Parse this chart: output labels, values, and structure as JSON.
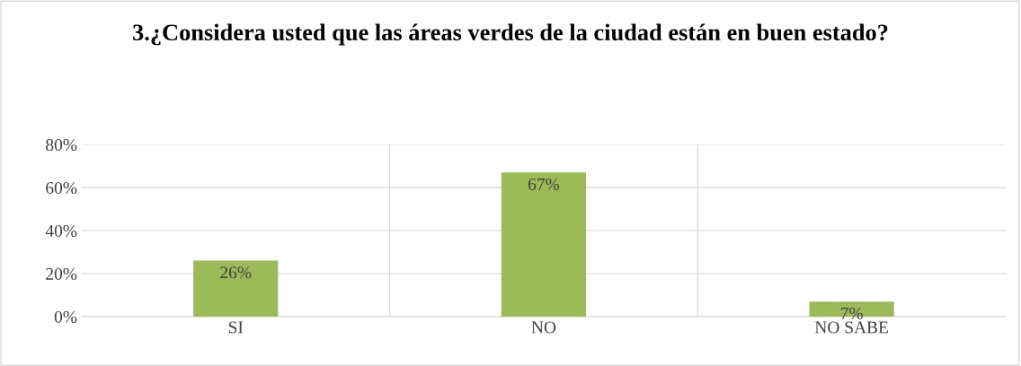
{
  "chart_data": {
    "type": "bar",
    "title": "3.¿Considera usted que las áreas verdes de la ciudad están en buen estado?",
    "categories": [
      "SI",
      "NO",
      "NO SABE"
    ],
    "values": [
      26,
      67,
      7
    ],
    "value_labels": [
      "26%",
      "67%",
      "7%"
    ],
    "color": "#9bbb59",
    "ylim": [
      0,
      80
    ],
    "yticks": [
      {
        "value": 0,
        "label": "0%"
      },
      {
        "value": 20,
        "label": "20%"
      },
      {
        "value": 40,
        "label": "40%"
      },
      {
        "value": 60,
        "label": "60%"
      },
      {
        "value": 80,
        "label": "80%"
      }
    ],
    "grid": true,
    "legend": false
  }
}
